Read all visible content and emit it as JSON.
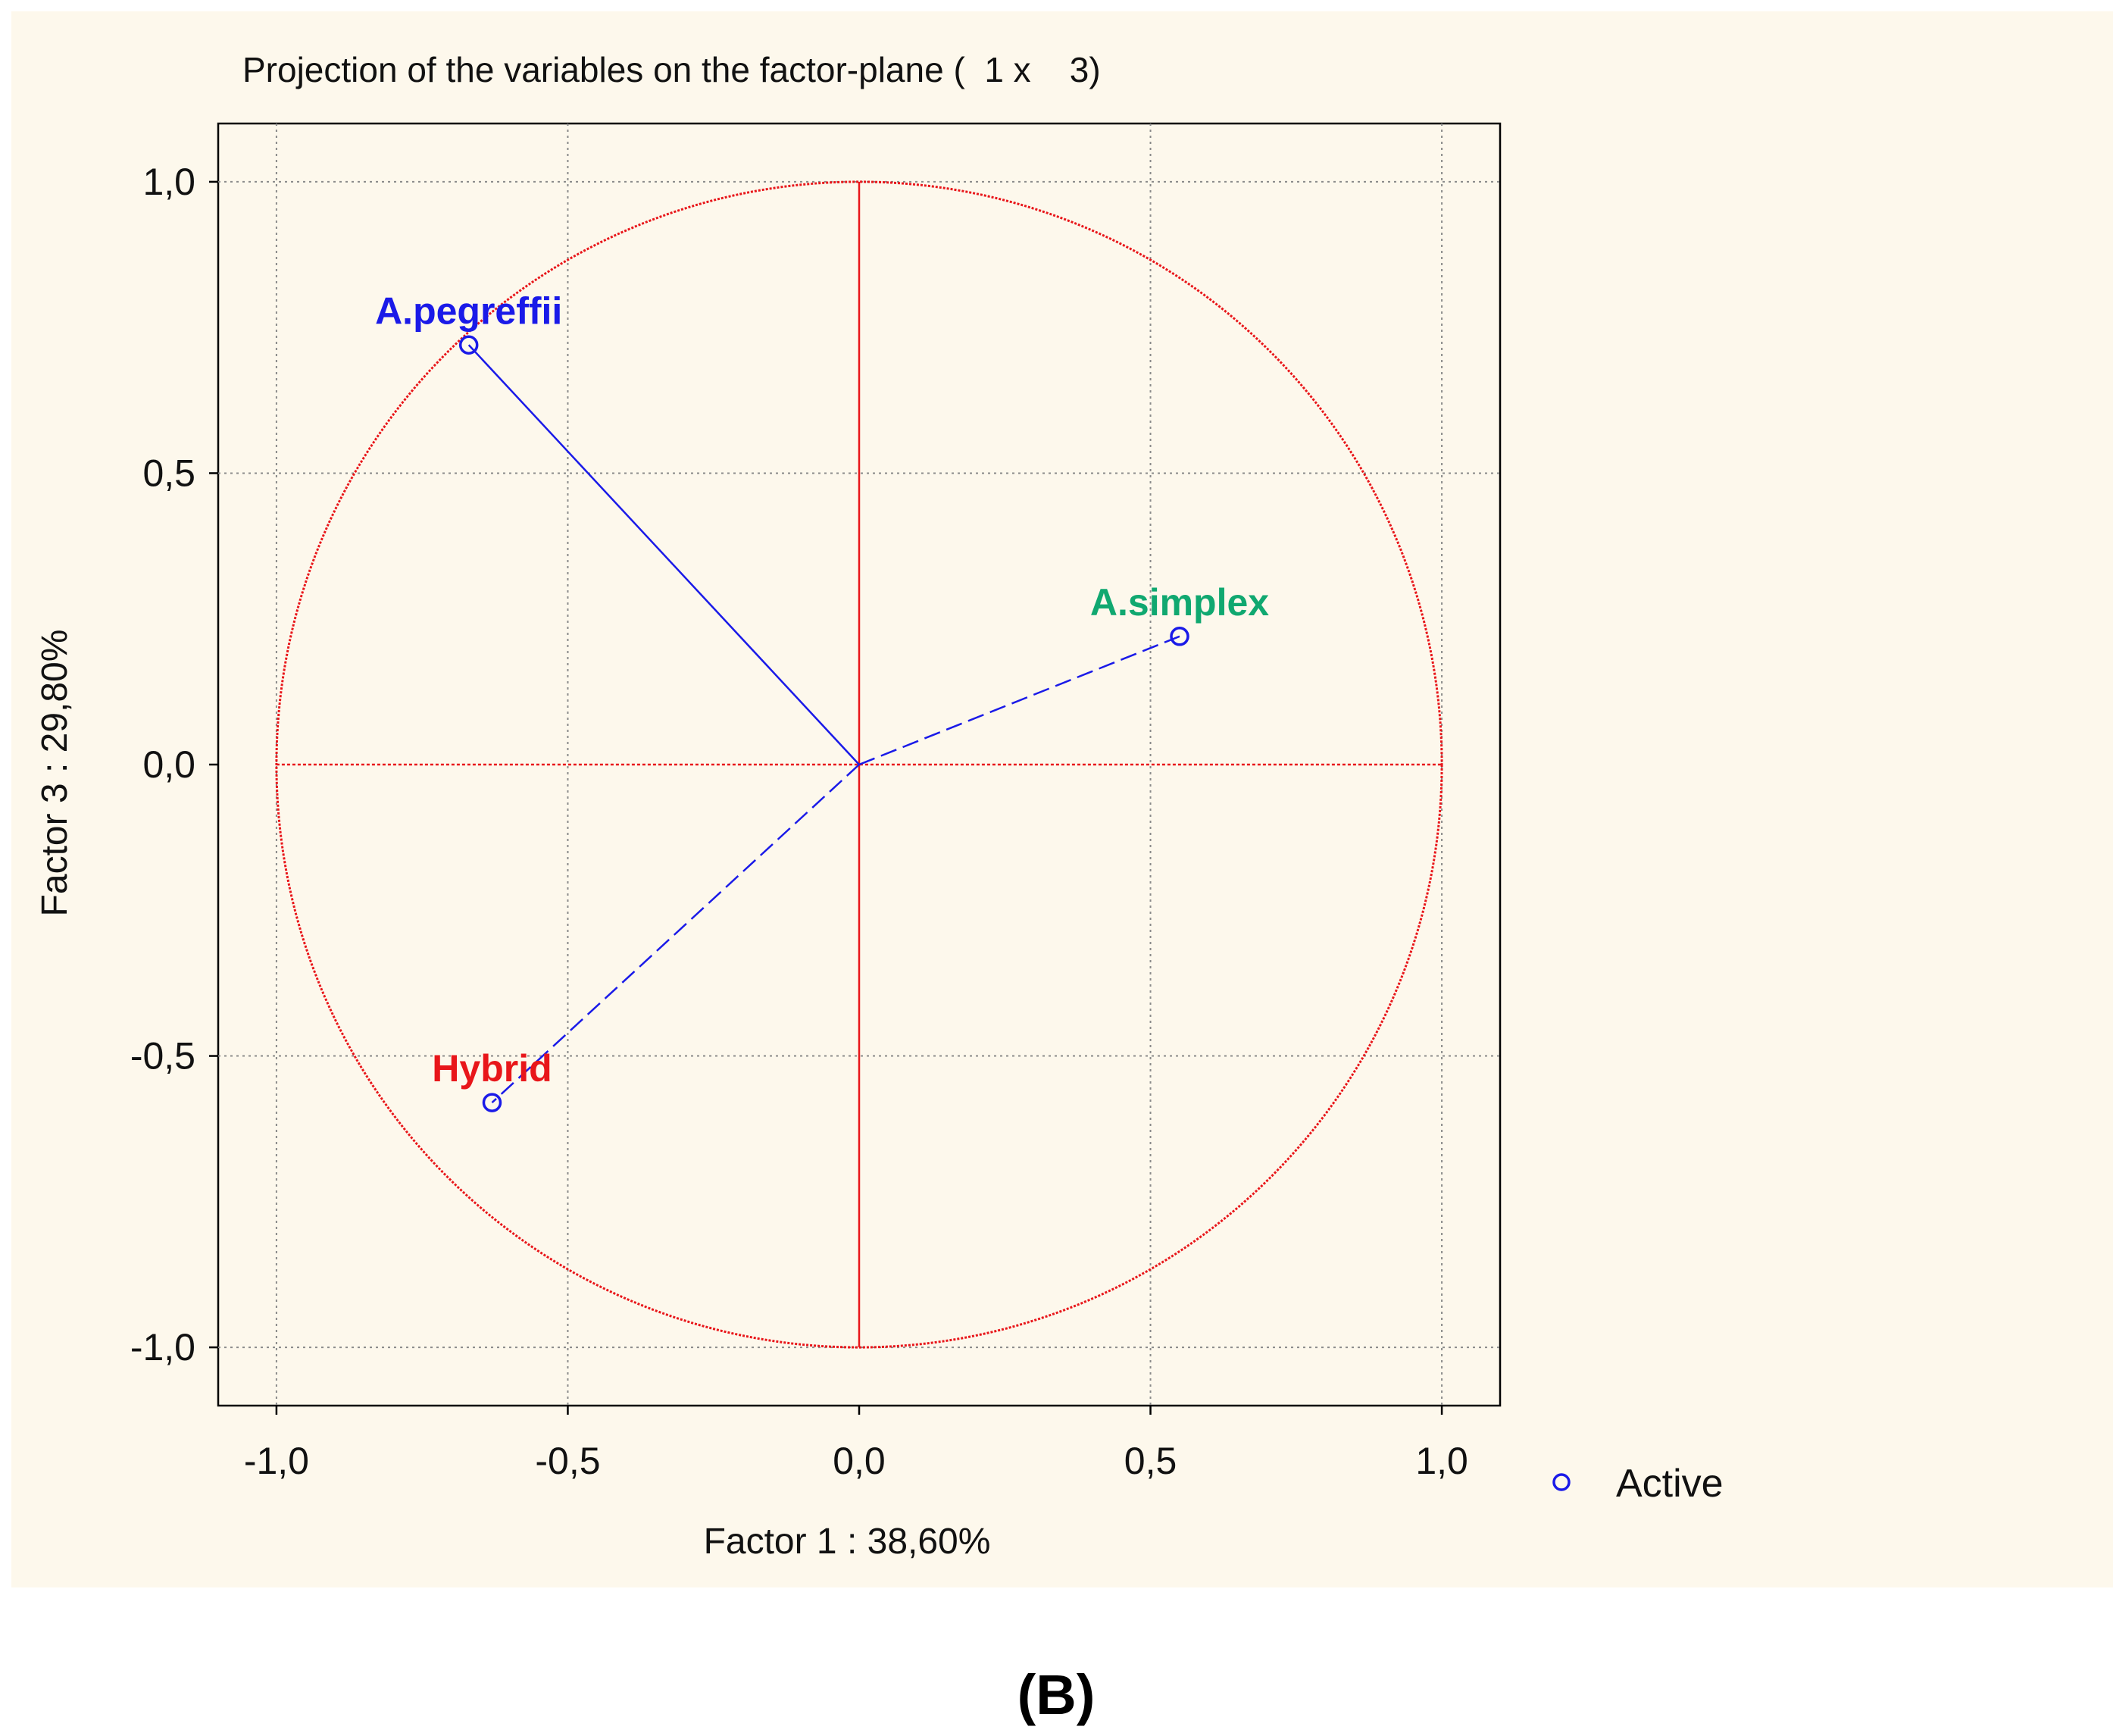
{
  "background_color": "#fdf8ec",
  "caption": "(B)",
  "chart_data": {
    "type": "scatter",
    "title": "Projection of the variables on the factor-plane (  1 x    3)",
    "xlabel": "Factor 1 : 38,60%",
    "ylabel": "Factor 3 : 29,80%",
    "xlim": [
      -1.1,
      1.1
    ],
    "ylim": [
      -1.1,
      1.1
    ],
    "xticks": [
      {
        "value": -1.0,
        "label": "-1,0"
      },
      {
        "value": -0.5,
        "label": "-0,5"
      },
      {
        "value": 0.0,
        "label": "0,0"
      },
      {
        "value": 0.5,
        "label": "0,5"
      },
      {
        "value": 1.0,
        "label": "1,0"
      }
    ],
    "yticks": [
      {
        "value": 1.0,
        "label": "1,0"
      },
      {
        "value": 0.5,
        "label": "0,5"
      },
      {
        "value": 0.0,
        "label": "0,0"
      },
      {
        "value": -0.5,
        "label": "-0,5"
      },
      {
        "value": -1.0,
        "label": "-1,0"
      }
    ],
    "grid": true,
    "unit_circle": {
      "radius": 1.0,
      "color": "#e8161a"
    },
    "points": [
      {
        "name": "A.pegreffii",
        "x": -0.67,
        "y": 0.72,
        "label_color": "#1a1ae8",
        "vector_style": "solid"
      },
      {
        "name": "A.simplex",
        "x": 0.55,
        "y": 0.22,
        "label_color": "#10a870",
        "vector_style": "dashed"
      },
      {
        "name": "Hybrid",
        "x": -0.63,
        "y": -0.58,
        "label_color": "#e8161a",
        "vector_style": "dashed"
      }
    ],
    "point_color": "#1a1ae8",
    "legend": {
      "position": "bottom-right",
      "entries": [
        {
          "label": "Active",
          "marker": "circle-icon",
          "color": "#1a1ae8"
        }
      ]
    }
  }
}
